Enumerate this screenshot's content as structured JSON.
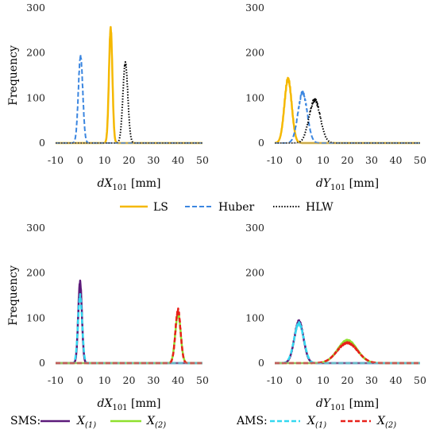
{
  "colors": {
    "LS": "#F5B800",
    "Huber": "#3B86E0",
    "HLW": "#000000",
    "SMS_1": "#5C1A7A",
    "SMS_2": "#8FE02E",
    "AMS_1": "#34D8F0",
    "AMS_2": "#E8211A"
  },
  "legend_top": {
    "items": [
      "LS",
      "Huber",
      "HLW"
    ]
  },
  "legend_bottom": {
    "groups": [
      {
        "prefix": "SMS:",
        "items": [
          {
            "sub": "(1)"
          },
          {
            "sub": "(2)"
          }
        ]
      },
      {
        "prefix": "AMS:",
        "items": [
          {
            "sub": "(1)"
          },
          {
            "sub": "(2)"
          }
        ]
      }
    ],
    "symbol": "X"
  },
  "chart_data": [
    {
      "type": "line",
      "panel": "top-left",
      "ylabel": "Frequency",
      "xlabel_var": "dX",
      "xlabel_sub": "101",
      "xlabel_unit": "[mm]",
      "xlim": [
        -10,
        50
      ],
      "ylim": [
        0,
        300
      ],
      "xticks": [
        "-10",
        "0",
        "10",
        "20",
        "30",
        "40",
        "50"
      ],
      "yticks": [
        "0",
        "100",
        "200",
        "300"
      ],
      "grid": false,
      "series": [
        {
          "name": "LS",
          "peaks": [
            {
              "center": 12.5,
              "height": 255,
              "width": 0.7
            }
          ]
        },
        {
          "name": "Huber",
          "peaks": [
            {
              "center": 0.2,
              "height": 193,
              "width": 0.9
            }
          ]
        },
        {
          "name": "HLW",
          "peaks": [
            {
              "center": 18.5,
              "height": 178,
              "width": 1.0
            }
          ]
        }
      ]
    },
    {
      "type": "line",
      "panel": "top-right",
      "ylabel": "",
      "xlabel_var": "dY",
      "xlabel_sub": "101",
      "xlabel_unit": "[mm]",
      "xlim": [
        -10,
        50
      ],
      "ylim": [
        0,
        300
      ],
      "xticks": [
        "-10",
        "0",
        "10",
        "20",
        "30",
        "40",
        "50"
      ],
      "yticks": [
        "0",
        "100",
        "200",
        "300"
      ],
      "grid": false,
      "series": [
        {
          "name": "LS",
          "peaks": [
            {
              "center": -4.5,
              "height": 142,
              "width": 1.5
            }
          ]
        },
        {
          "name": "Huber",
          "peaks": [
            {
              "center": 1.5,
              "height": 112,
              "width": 1.9
            }
          ]
        },
        {
          "name": "HLW",
          "peaks": [
            {
              "center": 6.5,
              "height": 96,
              "width": 2.3
            }
          ]
        }
      ]
    },
    {
      "type": "line",
      "panel": "bottom-left",
      "ylabel": "Frequency",
      "xlabel_var": "dX",
      "xlabel_sub": "101",
      "xlabel_unit": "[mm]",
      "xlim": [
        -10,
        50
      ],
      "ylim": [
        0,
        300
      ],
      "xticks": [
        "-10",
        "0",
        "10",
        "20",
        "30",
        "40",
        "50"
      ],
      "yticks": [
        "0",
        "100",
        "200",
        "300"
      ],
      "grid": false,
      "series": [
        {
          "name": "SMS X(1)",
          "peaks": [
            {
              "center": 0,
              "height": 180,
              "width": 0.75
            }
          ]
        },
        {
          "name": "SMS X(2)",
          "peaks": [
            {
              "center": 40,
              "height": 110,
              "width": 1.1
            }
          ]
        },
        {
          "name": "AMS X(1)",
          "peaks": [
            {
              "center": 0,
              "height": 150,
              "width": 0.85
            }
          ]
        },
        {
          "name": "AMS X(2)",
          "peaks": [
            {
              "center": 40,
              "height": 118,
              "width": 1.05
            }
          ]
        }
      ]
    },
    {
      "type": "line",
      "panel": "bottom-right",
      "ylabel": "",
      "xlabel_var": "dY",
      "xlabel_sub": "101",
      "xlabel_unit": "[mm]",
      "xlim": [
        -10,
        50
      ],
      "ylim": [
        0,
        300
      ],
      "xticks": [
        "-10",
        "0",
        "10",
        "20",
        "30",
        "40",
        "50"
      ],
      "yticks": [
        "0",
        "100",
        "200",
        "300"
      ],
      "grid": false,
      "series": [
        {
          "name": "SMS X(1)",
          "peaks": [
            {
              "center": 0,
              "height": 92,
              "width": 1.9
            }
          ]
        },
        {
          "name": "SMS X(2)",
          "peaks": [
            {
              "center": 20,
              "height": 50,
              "width": 4.0
            }
          ]
        },
        {
          "name": "AMS X(1)",
          "peaks": [
            {
              "center": 0,
              "height": 88,
              "width": 2.0
            }
          ]
        },
        {
          "name": "AMS X(2)",
          "peaks": [
            {
              "center": 20,
              "height": 45,
              "width": 4.2
            }
          ]
        }
      ]
    }
  ]
}
